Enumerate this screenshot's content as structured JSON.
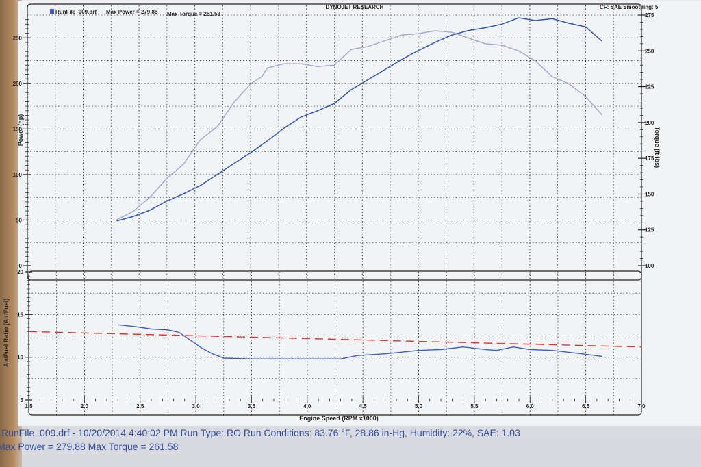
{
  "header": {
    "brand": "DYNOJET RESEARCH",
    "corner": "CF: SAE  Smoothing: 5",
    "run_file": "RunFile_009.drf",
    "max_power_label": "Max Power = 279.88",
    "max_torque_label": "Max Torque = 261.58"
  },
  "footer": {
    "line1": "RunFile_009.drf - 10/20/2014 4:40:02 PM  Run Type: RO  Run Conditions: 83.76 °F, 28.86 in-Hg,  Humidity:  22%, SAE: 1.03",
    "line2": "Max Power = 279.88  Max Torque = 261.58"
  },
  "colors": {
    "power": "#2f55b5",
    "torque": "#9aa6d4",
    "afr": "#3a5cc4",
    "target": "#e0302c",
    "grid": "#333333",
    "frame": "#222222",
    "axis_text": "#222222"
  },
  "chart_data": [
    {
      "type": "line",
      "title": "",
      "xlabel": "",
      "ylabel": "Power (hp)",
      "y2label": "Torque (ft-lbs)",
      "xlim": [
        1.5,
        7.0
      ],
      "ylim": [
        0,
        275
      ],
      "y2lim": [
        100,
        275
      ],
      "x_ticks": [],
      "y_ticks": [
        0,
        50,
        100,
        150,
        200,
        250
      ],
      "y2_ticks": [
        100,
        125,
        150,
        175,
        200,
        225,
        250,
        275
      ],
      "grid": true,
      "series": [
        {
          "name": "Power",
          "axis": "left",
          "x": [
            2.3,
            2.45,
            2.6,
            2.75,
            2.9,
            3.05,
            3.2,
            3.35,
            3.5,
            3.65,
            3.8,
            3.95,
            4.1,
            4.25,
            4.4,
            4.55,
            4.7,
            4.85,
            5.0,
            5.15,
            5.3,
            5.45,
            5.6,
            5.75,
            5.9,
            6.05,
            6.2,
            6.35,
            6.5,
            6.65
          ],
          "values": [
            49,
            54,
            61,
            71,
            79,
            88,
            100,
            112,
            124,
            137,
            151,
            163,
            170,
            178,
            193,
            204,
            215,
            226,
            236,
            245,
            253,
            258,
            261,
            265,
            272,
            269,
            271,
            266,
            262,
            246
          ]
        },
        {
          "name": "Torque",
          "axis": "right",
          "x": [
            2.3,
            2.45,
            2.6,
            2.75,
            2.9,
            3.05,
            3.2,
            3.35,
            3.5,
            3.6,
            3.65,
            3.8,
            3.95,
            4.1,
            4.25,
            4.4,
            4.55,
            4.7,
            4.85,
            5.0,
            5.15,
            5.3,
            5.45,
            5.6,
            5.75,
            5.9,
            6.05,
            6.2,
            6.35,
            6.5,
            6.65
          ],
          "values": [
            132,
            138,
            148,
            161,
            171,
            188,
            197,
            214,
            227,
            232,
            238,
            241,
            241,
            239,
            240,
            251,
            253,
            257,
            261,
            262,
            264,
            263,
            259,
            255,
            254,
            250,
            243,
            232,
            227,
            218,
            205
          ]
        }
      ]
    },
    {
      "type": "line",
      "title": "",
      "xlabel": "Engine Speed (RPM x1000)",
      "ylabel": "Air/Fuel Ratio (Air/Fuel)",
      "xlim": [
        1.5,
        7.0
      ],
      "ylim": [
        5,
        20
      ],
      "x_ticks": [
        1.5,
        2.0,
        2.5,
        3.0,
        3.5,
        4.0,
        4.5,
        5.0,
        5.5,
        6.0,
        6.5,
        7.0
      ],
      "y_ticks": [
        5,
        10,
        15,
        20
      ],
      "grid": true,
      "series": [
        {
          "name": "A/F",
          "x": [
            2.3,
            2.45,
            2.6,
            2.75,
            2.85,
            2.95,
            3.05,
            3.15,
            3.25,
            3.5,
            3.8,
            4.1,
            4.3,
            4.45,
            4.7,
            5.0,
            5.2,
            5.4,
            5.6,
            5.7,
            5.85,
            6.0,
            6.2,
            6.4,
            6.65
          ],
          "values": [
            13.8,
            13.6,
            13.3,
            13.2,
            12.9,
            12.0,
            11.1,
            10.4,
            9.9,
            9.8,
            9.8,
            9.8,
            9.8,
            10.2,
            10.4,
            10.8,
            10.9,
            11.2,
            10.9,
            10.8,
            11.2,
            10.9,
            10.8,
            10.5,
            10.1
          ]
        },
        {
          "name": "Target",
          "style": "dashed",
          "x": [
            1.5,
            7.0
          ],
          "values": [
            13.0,
            11.2
          ]
        }
      ]
    }
  ]
}
